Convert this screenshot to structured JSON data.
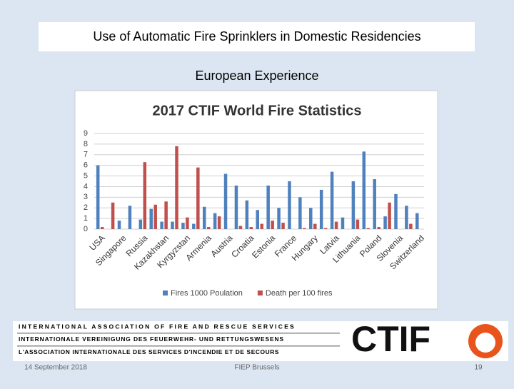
{
  "slide": {
    "title": "Use of Automatic Fire Sprinklers in Domestic Residencies",
    "subtitle": "European Experience",
    "banner": {
      "lines": [
        "INTERNATIONAL ASSOCIATION OF FIRE AND RESCUE SERVICES",
        "INTERNATIONALE VEREINIGUNG DES FEUERWEHR- UND RETTUNGSWESENS",
        "L'ASSOCIATION INTERNATIONALE DES SERVICES D'INCENDIE ET DE SECOURS"
      ],
      "logo": "CTIF"
    },
    "footer": {
      "date": "14 September 2018",
      "place": "FIEP Brussels",
      "page": "19"
    }
  },
  "chart_data": {
    "type": "bar",
    "title": "2017 CTIF World Fire Statistics",
    "categories": [
      "USA",
      null,
      "Singapore",
      null,
      "Russia",
      null,
      "Kazakhstan",
      null,
      "Kyrgyzstan",
      null,
      "Armenia",
      null,
      "Austria",
      null,
      "Croatia",
      null,
      "Estonia",
      null,
      "France",
      null,
      "Hungary",
      null,
      "Latvia",
      null,
      "Lithuania",
      null,
      "Poland",
      null,
      "Slovenia",
      null,
      "Switzerland"
    ],
    "series": [
      {
        "name": "Fires 1000 Poulation",
        "color": "#4f81bd",
        "values": [
          6.0,
          0,
          0.8,
          2.2,
          0.9,
          1.9,
          0.7,
          0.7,
          0.6,
          0.5,
          2.1,
          1.5,
          5.2,
          4.1,
          2.7,
          1.8,
          4.1,
          2.0,
          4.5,
          3.0,
          2.0,
          3.7,
          5.4,
          1.1,
          4.5,
          7.3,
          4.7,
          1.2,
          3.3,
          2.2,
          1.5
        ]
      },
      {
        "name": "Death per 100 fires",
        "color": "#c0504d",
        "values": [
          0.2,
          2.5,
          0,
          0,
          6.3,
          2.3,
          2.6,
          7.8,
          1.1,
          5.8,
          0.2,
          1.2,
          0,
          0.3,
          0.2,
          0.5,
          0.8,
          0.6,
          0,
          0.1,
          0.5,
          0.1,
          0.7,
          0,
          0.9,
          0.1,
          0.2,
          2.5,
          0,
          0.5,
          0
        ]
      }
    ],
    "ylim": [
      0,
      9
    ],
    "yticks": [
      0,
      1,
      2,
      3,
      4,
      5,
      6,
      7,
      8,
      9
    ],
    "grid": true,
    "legend": "bottom"
  }
}
